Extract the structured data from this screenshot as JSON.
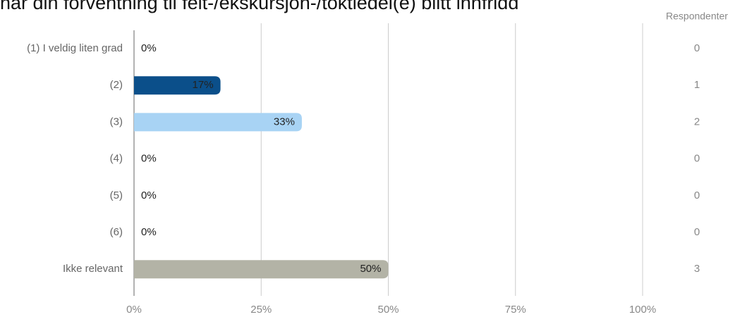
{
  "chart_data": {
    "type": "bar",
    "title": "har din forventning til felt-/ekskursjon-/toktiedel(e) blitt innfridd",
    "categories": [
      "(1) I veldig liten grad",
      "(2)",
      "(3)",
      "(4)",
      "(5)",
      "(6)",
      "Ikke relevant"
    ],
    "values": [
      0,
      17,
      33,
      0,
      0,
      0,
      50
    ],
    "value_labels": [
      "0%",
      "17%",
      "33%",
      "0%",
      "0%",
      "0%",
      "50%"
    ],
    "colors": [
      "#0b4f8a",
      "#0b4f8a",
      "#a8d3f4",
      "#0b4f8a",
      "#0b4f8a",
      "#0b4f8a",
      "#b3b3a6"
    ],
    "count_header": "Respondenter",
    "counts": [
      0,
      1,
      2,
      0,
      0,
      0,
      3
    ],
    "xlim": [
      0,
      100
    ],
    "xticks": [
      {
        "value": 0,
        "label": "0%"
      },
      {
        "value": 25,
        "label": "25%"
      },
      {
        "value": 50,
        "label": "50%"
      },
      {
        "value": 75,
        "label": "75%"
      },
      {
        "value": 100,
        "label": "100%"
      }
    ],
    "grid": true
  }
}
